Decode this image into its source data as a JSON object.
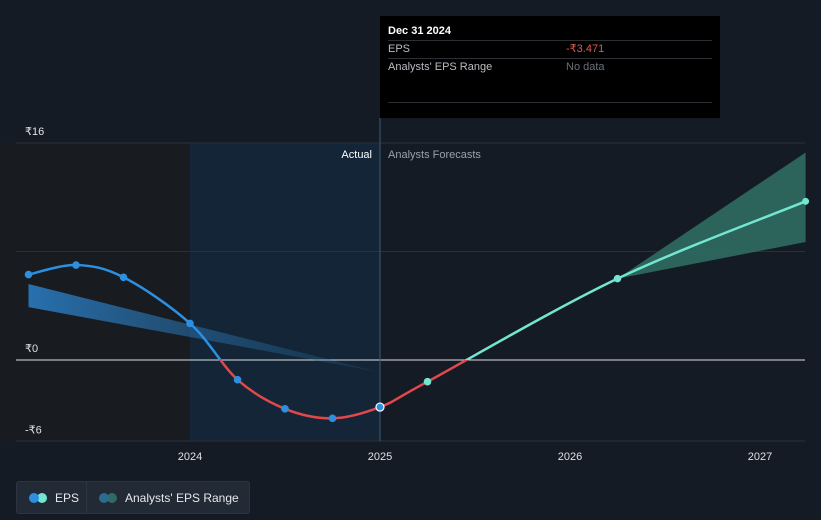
{
  "chart_data": {
    "type": "line",
    "y_unit": "₹",
    "y_ticks": [
      {
        "label": "₹16",
        "value": 16
      },
      {
        "label": "₹0",
        "value": 0
      },
      {
        "label": "-₹6",
        "value": -6
      }
    ],
    "x_ticks": [
      {
        "label": "2024",
        "value": 2024.0
      },
      {
        "label": "2025",
        "value": 2025.0
      },
      {
        "label": "2026",
        "value": 2026.0
      },
      {
        "label": "2027",
        "value": 2027.0
      }
    ],
    "xlim": [
      2022.98,
      2027.24
    ],
    "ylim": [
      -6,
      16
    ],
    "region_labels": {
      "actual": "Actual",
      "forecast": "Analysts Forecasts"
    },
    "divider_x": 2025.0,
    "highlight_x_range": [
      2024.0,
      2025.0
    ],
    "series": [
      {
        "name": "EPS",
        "kind": "actual",
        "points": [
          {
            "x": 2023.15,
            "y": 6.3
          },
          {
            "x": 2023.4,
            "y": 7.0
          },
          {
            "x": 2023.65,
            "y": 6.1
          },
          {
            "x": 2024.0,
            "y": 2.7
          },
          {
            "x": 2024.25,
            "y": -1.45
          },
          {
            "x": 2024.5,
            "y": -3.6
          },
          {
            "x": 2024.75,
            "y": -4.3
          },
          {
            "x": 2025.0,
            "y": -3.471
          }
        ]
      },
      {
        "name": "EPS forecast",
        "kind": "forecast",
        "points": [
          {
            "x": 2025.25,
            "y": -1.6
          },
          {
            "x": 2026.25,
            "y": 6.0
          },
          {
            "x": 2027.24,
            "y": 11.7
          }
        ]
      }
    ],
    "forecast_range": {
      "x": [
        2026.25,
        2027.24
      ],
      "low": [
        6.0,
        8.7
      ],
      "high": [
        6.0,
        15.3
      ]
    },
    "past_range": {
      "x": [
        2023.15,
        2025.0
      ],
      "low": [
        3.9,
        -0.9
      ],
      "high": [
        5.6,
        -0.9
      ]
    },
    "colors": {
      "background": "#151b24",
      "plot_past": "#181b20",
      "highlight": "#132537",
      "actual_positive": "#2d8fe0",
      "actual_negative": "#e0484c",
      "forecast_line": "#72e6d0",
      "forecast_range": "#2f6b62",
      "grid": "#2a3039",
      "zero_line": "#dfe1e4",
      "marker_blue": "#2d8fe0",
      "marker_teal": "#72e6d0"
    }
  },
  "tooltip": {
    "date": "Dec 31 2024",
    "eps_label": "EPS",
    "eps_value": "-₹3.471",
    "range_label": "Analysts' EPS Range",
    "range_value": "No data"
  },
  "legend": [
    {
      "label": "EPS",
      "colors": [
        "#2d8fe0",
        "#72e6d0"
      ]
    },
    {
      "label": "Analysts' EPS Range",
      "colors": [
        "#2a6b8f",
        "#2f6b62"
      ]
    }
  ]
}
